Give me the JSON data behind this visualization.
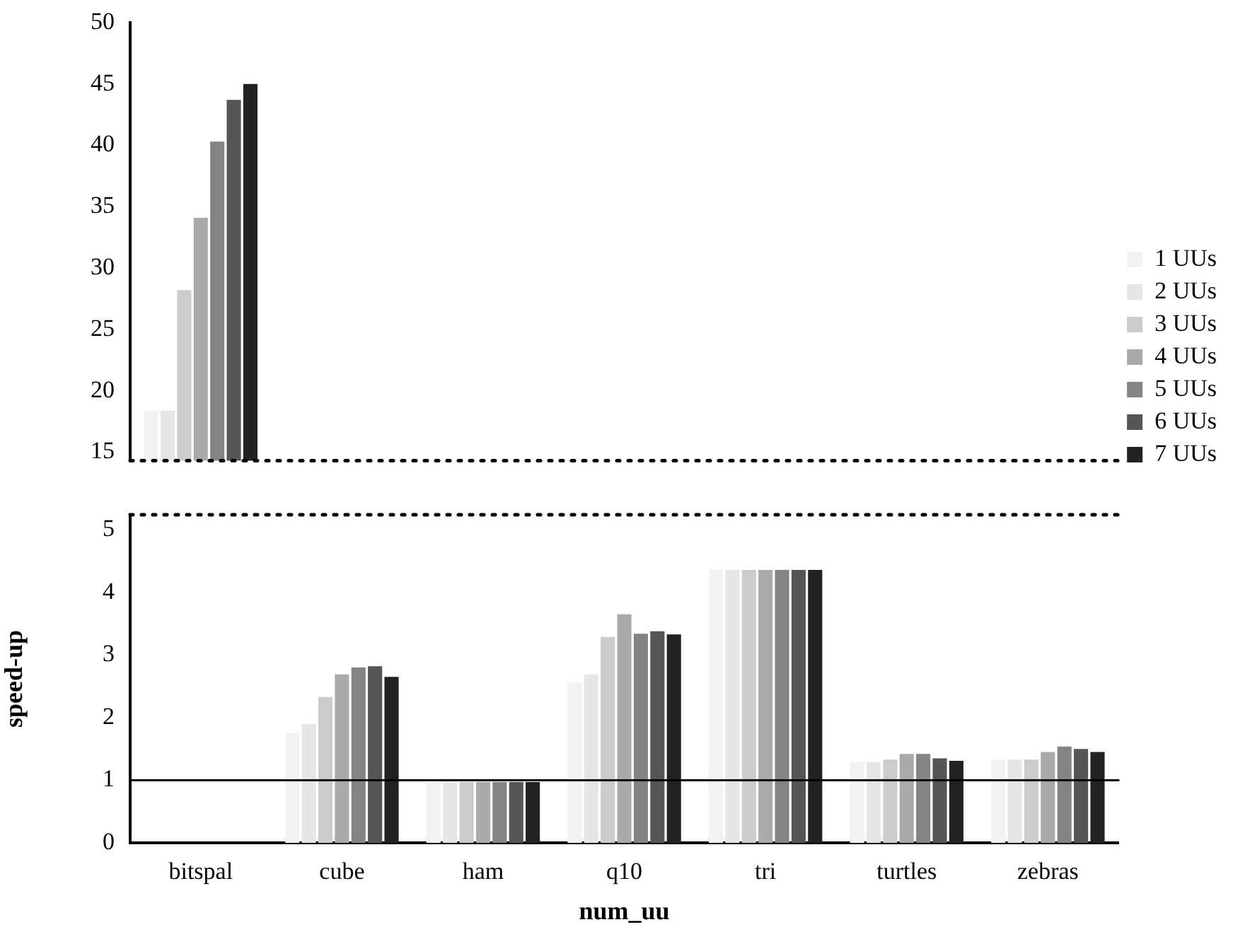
{
  "chart_data": [
    {
      "type": "bar",
      "categories": [
        null,
        null,
        null,
        null,
        null,
        null,
        null
      ],
      "ylim": [
        14.3,
        50
      ],
      "yticks": [
        15,
        20,
        25,
        30,
        35,
        40,
        45,
        50
      ],
      "tick_labels": "y",
      "legend": "right",
      "ref_lines": [
        {
          "axis": "y",
          "value": 14.3,
          "line_style": "dotted",
          "color": "#000000"
        }
      ],
      "series": [
        {
          "name": "1 UUs",
          "color": "#f2f2f2",
          "values": [
            18.4,
            null,
            null,
            null,
            null,
            null,
            null
          ]
        },
        {
          "name": "2 UUs",
          "color": "#e6e6e6",
          "values": [
            18.4,
            null,
            null,
            null,
            null,
            null,
            null
          ]
        },
        {
          "name": "3 UUs",
          "color": "#cccccc",
          "values": [
            28.2,
            null,
            null,
            null,
            null,
            null,
            null
          ]
        },
        {
          "name": "4 UUs",
          "color": "#aaaaaa",
          "values": [
            34.1,
            null,
            null,
            null,
            null,
            null,
            null
          ]
        },
        {
          "name": "5 UUs",
          "color": "#848484",
          "values": [
            40.3,
            null,
            null,
            null,
            null,
            null,
            null
          ]
        },
        {
          "name": "6 UUs",
          "color": "#555555",
          "values": [
            43.7,
            null,
            null,
            null,
            null,
            null,
            null
          ]
        },
        {
          "name": "7 UUs",
          "color": "#222222",
          "values": [
            45,
            null,
            null,
            null,
            null,
            null,
            null
          ]
        }
      ]
    },
    {
      "type": "bar",
      "categories": [
        "bitspal",
        "cube",
        "ham",
        "q10",
        "tri",
        "turtles",
        "zebras"
      ],
      "ylim": [
        0,
        5.24
      ],
      "yticks": [
        0,
        1,
        2,
        3,
        4,
        5
      ],
      "xlabel": "num_uu",
      "ylabel": "speed-up",
      "ref_lines": [
        {
          "axis": "y",
          "value": 1,
          "line_style": "solid",
          "color": "#000000"
        },
        {
          "axis": "y",
          "value": 5.24,
          "line_style": "dotted",
          "color": "#000000"
        }
      ],
      "series": [
        {
          "color": "#f2f2f2",
          "values": [
            null,
            1.75,
            0.97,
            2.56,
            4.37,
            1.29,
            1.33
          ]
        },
        {
          "color": "#e6e6e6",
          "values": [
            null,
            1.9,
            0.97,
            2.69,
            4.36,
            1.29,
            1.33
          ]
        },
        {
          "color": "#cccccc",
          "values": [
            null,
            2.33,
            0.97,
            3.29,
            4.36,
            1.33,
            1.33
          ]
        },
        {
          "color": "#aaaaaa",
          "values": [
            null,
            2.69,
            0.97,
            3.65,
            4.36,
            1.42,
            1.45
          ]
        },
        {
          "color": "#848484",
          "values": [
            null,
            2.8,
            0.97,
            3.34,
            4.36,
            1.42,
            1.54
          ]
        },
        {
          "color": "#555555",
          "values": [
            null,
            2.82,
            0.97,
            3.38,
            4.36,
            1.35,
            1.5
          ]
        },
        {
          "color": "#222222",
          "values": [
            null,
            2.65,
            0.97,
            3.33,
            4.36,
            1.31,
            1.45
          ]
        }
      ]
    }
  ]
}
